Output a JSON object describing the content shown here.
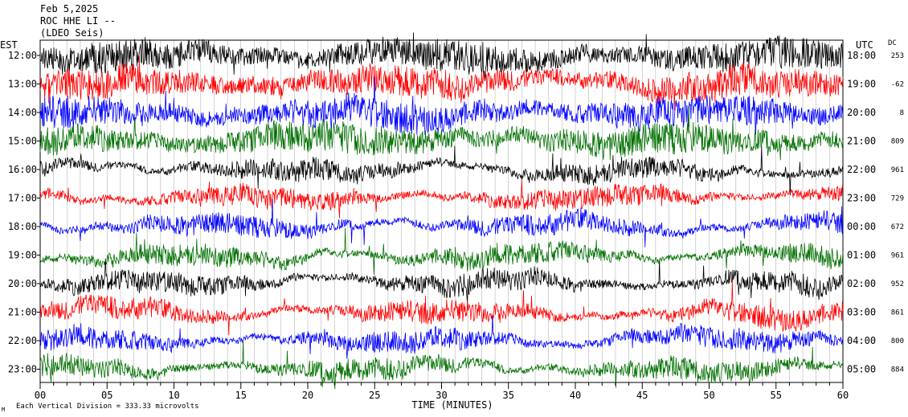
{
  "header": {
    "date": "Feb 5,2025",
    "station": "ROC HHE LI --",
    "subtitle": "(LDEO Seis)"
  },
  "left_timezone": "EST",
  "right_timezone": "UTC",
  "dc_header": "DC",
  "footnote": "Each Vertical Division =  333.33 microvolts",
  "chart_data": {
    "type": "line",
    "xlabel": "TIME (MINUTES)",
    "xlim": [
      0,
      60
    ],
    "x_ticks": [
      "00",
      "05",
      "10",
      "15",
      "20",
      "25",
      "30",
      "35",
      "40",
      "45",
      "50",
      "55",
      "60"
    ],
    "rows": [
      {
        "left": "12:00",
        "right": "18:00",
        "dc": "253",
        "color": "#000000"
      },
      {
        "left": "13:00",
        "right": "19:00",
        "dc": "-62",
        "color": "#ff0000"
      },
      {
        "left": "14:00",
        "right": "20:00",
        "dc": "8",
        "color": "#0000ff"
      },
      {
        "left": "15:00",
        "right": "21:00",
        "dc": "809",
        "color": "#007000"
      },
      {
        "left": "16:00",
        "right": "22:00",
        "dc": "961",
        "color": "#000000"
      },
      {
        "left": "17:00",
        "right": "23:00",
        "dc": "729",
        "color": "#ff0000"
      },
      {
        "left": "18:00",
        "right": "00:00",
        "dc": "672",
        "color": "#0000ff"
      },
      {
        "left": "19:00",
        "right": "01:00",
        "dc": "961",
        "color": "#007000"
      },
      {
        "left": "20:00",
        "right": "02:00",
        "dc": "952",
        "color": "#000000"
      },
      {
        "left": "21:00",
        "right": "03:00",
        "dc": "861",
        "color": "#ff0000"
      },
      {
        "left": "22:00",
        "right": "04:00",
        "dc": "800",
        "color": "#0000ff"
      },
      {
        "left": "23:00",
        "right": "05:00",
        "dc": "884",
        "color": "#007000"
      }
    ]
  }
}
